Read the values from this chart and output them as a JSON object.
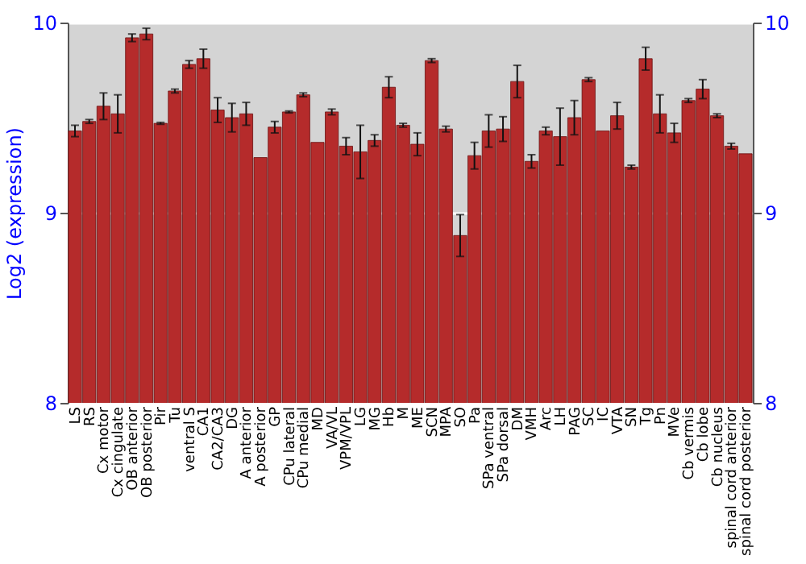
{
  "chart_data": {
    "type": "bar",
    "ylabel": "Log2 (expression)",
    "categories": [
      "LS",
      "RS",
      "Cx motor",
      "Cx cingulate",
      "OB anterior",
      "OB posterior",
      "Pir",
      "Tu",
      "ventral S",
      "CA1",
      "CA2/CA3",
      "DG",
      "A anterior",
      "A posterior",
      "GP",
      "CPu lateral",
      "CPu medial",
      "MD",
      "VA/VL",
      "VPM/VPL",
      "LG",
      "MG",
      "Hb",
      "M",
      "ME",
      "SCN",
      "MPA",
      "SO",
      "Pa",
      "SPa ventral",
      "SPa dorsal",
      "DM",
      "VMH",
      "Arc",
      "LH",
      "PAG",
      "SC",
      "IC",
      "VTA",
      "SN",
      "Tg",
      "Pn",
      "MVe",
      "Cb vermis",
      "Cb lobe",
      "Cb nucleus",
      "spinal cord anterior",
      "spinal cord posterior"
    ],
    "values": [
      9.43,
      9.48,
      9.56,
      9.52,
      9.92,
      9.94,
      9.47,
      9.64,
      9.78,
      9.81,
      9.54,
      9.5,
      9.52,
      9.29,
      9.45,
      9.53,
      9.62,
      9.37,
      9.53,
      9.35,
      9.32,
      9.38,
      9.66,
      9.46,
      9.36,
      9.8,
      9.44,
      8.88,
      9.3,
      9.43,
      9.44,
      9.69,
      9.27,
      9.43,
      9.4,
      9.5,
      9.7,
      9.43,
      9.51,
      9.24,
      9.81,
      9.52,
      9.42,
      9.59,
      9.65,
      9.51,
      9.35,
      9.31
    ],
    "errors": [
      0.03,
      0.01,
      0.07,
      0.1,
      0.02,
      0.03,
      0.005,
      0.01,
      0.02,
      0.05,
      0.065,
      0.075,
      0.06,
      null,
      0.03,
      0.005,
      0.01,
      null,
      0.015,
      0.045,
      0.14,
      0.03,
      0.055,
      0.01,
      0.06,
      0.01,
      0.015,
      0.11,
      0.07,
      0.085,
      0.065,
      0.085,
      0.035,
      0.02,
      0.15,
      0.09,
      0.01,
      null,
      0.07,
      0.01,
      0.06,
      0.1,
      0.05,
      0.01,
      0.05,
      0.01,
      0.015,
      null
    ],
    "color": "#b52b2b",
    "ylim": [
      8,
      10
    ],
    "yticks": [
      8,
      9,
      10
    ],
    "y2lim": [
      8,
      10
    ],
    "y2ticks": [
      8,
      9,
      10
    ],
    "grid": "y"
  }
}
